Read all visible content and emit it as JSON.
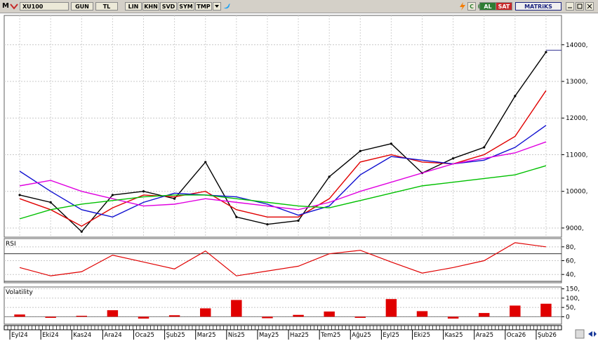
{
  "toolbar": {
    "m_label": "M",
    "symbol": "XU100",
    "period": "GUN",
    "currency": "TL",
    "buttons": [
      "LIN",
      "KHN",
      "SVD",
      "SYM",
      "TMP"
    ],
    "dropdown_icon": "chevron-down-icon",
    "bird_icon": "twitter-bird-icon",
    "al_label": "AL",
    "sat_label": "SAT",
    "brand": "MATRiKS",
    "c_label": "C",
    "colors": {
      "al": "#2e7d32",
      "sat": "#c62828"
    }
  },
  "chart_data": [
    {
      "type": "line",
      "name": "price-panel",
      "title": "",
      "y_ticks": [
        9000,
        10000,
        11000,
        12000,
        13000,
        14000
      ],
      "y_tick_labels": [
        "9000,",
        "10000,",
        "11000,",
        "12000,",
        "13000,",
        "14000,"
      ],
      "ylim": [
        8750,
        14800
      ],
      "x_ticks": [
        "Eyl24",
        "Eki24",
        "Kas24",
        "Ara24",
        "Oca25",
        "Şub25",
        "Mar25",
        "Nis25",
        "May25",
        "Haz25",
        "Tem25",
        "Ağu25",
        "Eyl25",
        "Eki25",
        "Kas25",
        "Ara25",
        "Oca26",
        "Şub26"
      ],
      "price": {
        "x": [
          "Eyl24",
          "Eki24",
          "Kas24",
          "Ara24",
          "Oca25",
          "Şub25",
          "Mar25",
          "Nis25",
          "May25",
          "Haz25",
          "Tem25",
          "Ağu25",
          "Eyl25",
          "Eki25",
          "Kas25",
          "Ara25",
          "Oca26",
          "Şub26"
        ],
        "y": [
          9900,
          9700,
          8900,
          9900,
          10000,
          9800,
          10800,
          9300,
          9100,
          9200,
          10400,
          11100,
          11300,
          10500,
          10900,
          11200,
          12600,
          13800
        ]
      },
      "series": [
        {
          "color": "#e00000",
          "y": [
            9800,
            9500,
            9050,
            9550,
            9900,
            9850,
            10000,
            9500,
            9300,
            9300,
            9800,
            10800,
            11000,
            10800,
            10750,
            11000,
            11500,
            12750
          ]
        },
        {
          "color": "#1010d0",
          "y": [
            10550,
            10000,
            9500,
            9300,
            9700,
            9950,
            9900,
            9850,
            9650,
            9350,
            9600,
            10450,
            10950,
            10850,
            10750,
            10850,
            11200,
            11800
          ]
        },
        {
          "color": "#e000e0",
          "y": [
            10150,
            10300,
            10000,
            9800,
            9600,
            9650,
            9800,
            9700,
            9600,
            9500,
            9700,
            10000,
            10250,
            10500,
            10750,
            10900,
            11050,
            11350
          ]
        },
        {
          "color": "#00c000",
          "y": [
            9250,
            9500,
            9650,
            9750,
            9850,
            9900,
            9900,
            9800,
            9700,
            9600,
            9550,
            9750,
            9950,
            10150,
            10250,
            10350,
            10450,
            10700
          ]
        }
      ],
      "last_price": 13850
    },
    {
      "type": "line",
      "name": "rsi-panel",
      "title": "RSI",
      "y_ticks": [
        40,
        60,
        80
      ],
      "y_tick_labels": [
        "40,",
        "60,",
        "80,"
      ],
      "ylim": [
        28,
        92
      ],
      "bands": [
        70,
        30
      ],
      "series": [
        {
          "color": "#e00000",
          "y": [
            50,
            38,
            44,
            68,
            58,
            48,
            74,
            38,
            45,
            52,
            70,
            75,
            58,
            42,
            50,
            60,
            86,
            80
          ]
        }
      ]
    },
    {
      "type": "bar",
      "name": "volatility-panel",
      "title": "Volatility",
      "y_ticks": [
        0,
        50,
        100,
        150
      ],
      "y_tick_labels": [
        "0",
        "50,",
        "100,",
        "150,"
      ],
      "ylim": [
        -40,
        160
      ],
      "values": [
        12,
        -6,
        5,
        35,
        -10,
        8,
        45,
        90,
        -8,
        10,
        28,
        -6,
        95,
        30,
        -10,
        20,
        60,
        70
      ]
    }
  ]
}
